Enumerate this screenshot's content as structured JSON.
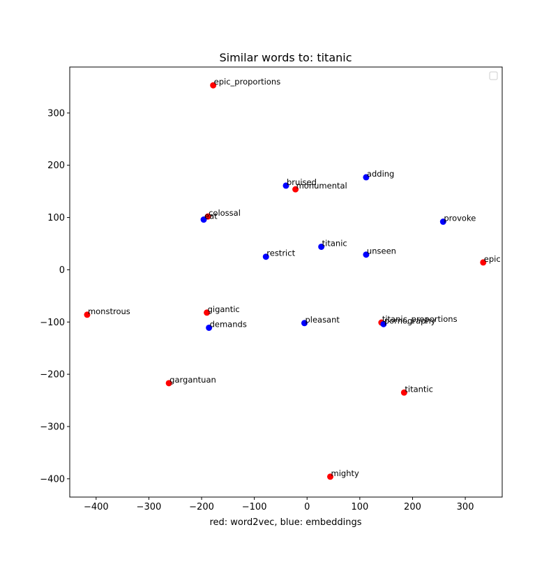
{
  "chart_data": {
    "type": "scatter",
    "title": "Similar words to: titanic",
    "xlabel": "red: word2vec, blue:  embeddings",
    "ylabel": "",
    "xlim": [
      -450,
      370
    ],
    "ylim": [
      -435,
      388
    ],
    "xticks": [
      -400,
      -300,
      -200,
      -100,
      0,
      100,
      200,
      300
    ],
    "yticks": [
      -400,
      -300,
      -200,
      -100,
      0,
      100,
      200,
      300
    ],
    "grid": false,
    "legend": "top-right (empty)",
    "colors": {
      "red": "#ff0000",
      "blue": "#0000ff"
    },
    "series": [
      {
        "color": "red",
        "points": [
          {
            "word": "epic_proportions",
            "x": -178,
            "y": 353
          },
          {
            "word": "monumental",
            "x": -22,
            "y": 154
          },
          {
            "word": "colossal",
            "x": -188,
            "y": 102
          },
          {
            "word": "epic",
            "x": 334,
            "y": 14
          },
          {
            "word": "monstrous",
            "x": -417,
            "y": -86
          },
          {
            "word": "gigantic",
            "x": -190,
            "y": -82
          },
          {
            "word": "titanic_proportions",
            "x": 141,
            "y": -101
          },
          {
            "word": "gargantuan",
            "x": -262,
            "y": -217
          },
          {
            "word": "titantic",
            "x": 184,
            "y": -235
          },
          {
            "word": "mighty",
            "x": 44,
            "y": -396
          }
        ]
      },
      {
        "color": "blue",
        "points": [
          {
            "word": "bruised",
            "x": -40,
            "y": 161
          },
          {
            "word": "adding",
            "x": 112,
            "y": 177
          },
          {
            "word": "eat",
            "x": -196,
            "y": 96
          },
          {
            "word": "provoke",
            "x": 258,
            "y": 92
          },
          {
            "word": "titanic",
            "x": 27,
            "y": 44
          },
          {
            "word": "restrict",
            "x": -78,
            "y": 25
          },
          {
            "word": "unseen",
            "x": 112,
            "y": 29
          },
          {
            "word": "demands",
            "x": -186,
            "y": -111
          },
          {
            "word": "pleasant",
            "x": -5,
            "y": -102
          },
          {
            "word": "pornography",
            "x": 145,
            "y": -104
          }
        ]
      }
    ]
  }
}
